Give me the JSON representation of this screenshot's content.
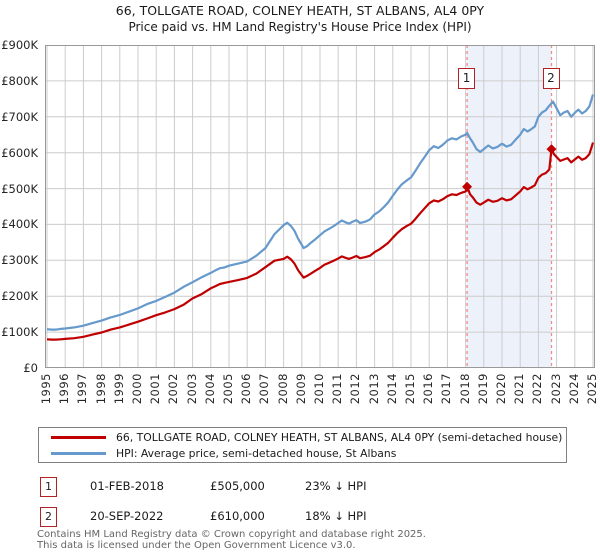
{
  "title": "66, TOLLGATE ROAD, COLNEY HEATH, ST ALBANS, AL4 0PY",
  "subtitle": "Price paid vs. HM Land Registry's House Price Index (HPI)",
  "colors": {
    "price_paid_line": "#c00000",
    "hpi_line": "#6699cc",
    "marker_dashed_line": "#f28b8b",
    "shaded_region": "#edf1fa",
    "gridline": "#cccccc",
    "plot_border": "#999999",
    "annotation_border": "#b22222",
    "footer_text": "#666666"
  },
  "chart_data": {
    "type": "line",
    "title": "66, TOLLGATE ROAD, COLNEY HEATH, ST ALBANS, AL4 0PY",
    "subtitle": "Price paid vs. HM Land Registry's House Price Index (HPI)",
    "x_axis": {
      "tick_labels": [
        "1995",
        "1996",
        "1997",
        "1998",
        "1999",
        "2000",
        "2001",
        "2002",
        "2003",
        "2004",
        "2005",
        "2006",
        "2007",
        "2008",
        "2009",
        "2010",
        "2011",
        "2012",
        "2013",
        "2014",
        "2015",
        "2016",
        "2017",
        "2018",
        "2019",
        "2020",
        "2021",
        "2022",
        "2023",
        "2024",
        "2025"
      ],
      "min": 1995,
      "max": 2025.1
    },
    "y_axis": {
      "tick_labels": [
        "£900K",
        "£800K",
        "£700K",
        "£600K",
        "£500K",
        "£400K",
        "£300K",
        "£200K",
        "£100K",
        "£0"
      ],
      "tick_values_k": [
        900,
        800,
        700,
        600,
        500,
        400,
        300,
        200,
        100,
        0
      ],
      "min_k": 0,
      "max_k": 900,
      "unit": "GBP thousands"
    },
    "grid": true,
    "legend_position": "bottom",
    "shaded_region": {
      "from_year": 2018.08,
      "to_year": 2022.72
    },
    "markers": [
      {
        "label": "1",
        "year": 2018.08,
        "value_k": 505
      },
      {
        "label": "2",
        "year": 2022.72,
        "value_k": 610
      }
    ],
    "series": [
      {
        "name": "66, TOLLGATE ROAD, COLNEY HEATH, ST ALBANS, AL4 0PY (semi-detached house)",
        "color": "#c00000",
        "points": [
          [
            1995.0,
            80
          ],
          [
            1995.25,
            79
          ],
          [
            1995.5,
            79
          ],
          [
            1995.75,
            80
          ],
          [
            1996.0,
            81
          ],
          [
            1996.5,
            83
          ],
          [
            1997.0,
            87
          ],
          [
            1997.5,
            93
          ],
          [
            1998.0,
            99
          ],
          [
            1998.5,
            107
          ],
          [
            1999.0,
            113
          ],
          [
            1999.5,
            121
          ],
          [
            2000.0,
            129
          ],
          [
            2000.5,
            138
          ],
          [
            2001.0,
            147
          ],
          [
            2001.5,
            155
          ],
          [
            2002.0,
            164
          ],
          [
            2002.5,
            176
          ],
          [
            2003.0,
            194
          ],
          [
            2003.5,
            206
          ],
          [
            2004.0,
            222
          ],
          [
            2004.25,
            228
          ],
          [
            2004.5,
            234
          ],
          [
            2004.75,
            237
          ],
          [
            2005.0,
            240
          ],
          [
            2005.5,
            245
          ],
          [
            2006.0,
            251
          ],
          [
            2006.5,
            263
          ],
          [
            2007.0,
            281
          ],
          [
            2007.5,
            299
          ],
          [
            2008.0,
            304
          ],
          [
            2008.2,
            310
          ],
          [
            2008.4,
            303
          ],
          [
            2008.6,
            291
          ],
          [
            2008.8,
            272
          ],
          [
            2009.1,
            252
          ],
          [
            2009.3,
            257
          ],
          [
            2009.5,
            263
          ],
          [
            2009.75,
            271
          ],
          [
            2010.0,
            279
          ],
          [
            2010.25,
            288
          ],
          [
            2010.5,
            293
          ],
          [
            2010.75,
            299
          ],
          [
            2011.0,
            305
          ],
          [
            2011.2,
            311
          ],
          [
            2011.4,
            307
          ],
          [
            2011.6,
            304
          ],
          [
            2011.8,
            308
          ],
          [
            2012.0,
            312
          ],
          [
            2012.2,
            306
          ],
          [
            2012.5,
            309
          ],
          [
            2012.75,
            313
          ],
          [
            2013.0,
            323
          ],
          [
            2013.25,
            330
          ],
          [
            2013.5,
            339
          ],
          [
            2013.75,
            349
          ],
          [
            2014.0,
            363
          ],
          [
            2014.25,
            376
          ],
          [
            2014.5,
            387
          ],
          [
            2014.75,
            395
          ],
          [
            2015.0,
            402
          ],
          [
            2015.25,
            416
          ],
          [
            2015.5,
            431
          ],
          [
            2015.75,
            445
          ],
          [
            2016.0,
            459
          ],
          [
            2016.25,
            467
          ],
          [
            2016.5,
            464
          ],
          [
            2016.75,
            470
          ],
          [
            2017.0,
            479
          ],
          [
            2017.25,
            484
          ],
          [
            2017.5,
            482
          ],
          [
            2017.75,
            488
          ],
          [
            2018.0,
            492
          ],
          [
            2018.08,
            505
          ],
          [
            2018.25,
            484
          ],
          [
            2018.4,
            475
          ],
          [
            2018.6,
            461
          ],
          [
            2018.8,
            455
          ],
          [
            2019.0,
            461
          ],
          [
            2019.25,
            469
          ],
          [
            2019.5,
            463
          ],
          [
            2019.75,
            466
          ],
          [
            2020.0,
            473
          ],
          [
            2020.25,
            467
          ],
          [
            2020.5,
            470
          ],
          [
            2020.75,
            481
          ],
          [
            2021.0,
            492
          ],
          [
            2021.2,
            504
          ],
          [
            2021.4,
            498
          ],
          [
            2021.6,
            503
          ],
          [
            2021.8,
            509
          ],
          [
            2022.0,
            530
          ],
          [
            2022.2,
            539
          ],
          [
            2022.4,
            543
          ],
          [
            2022.6,
            553
          ],
          [
            2022.72,
            610
          ],
          [
            2022.85,
            596
          ],
          [
            2023.0,
            588
          ],
          [
            2023.2,
            577
          ],
          [
            2023.4,
            581
          ],
          [
            2023.6,
            585
          ],
          [
            2023.8,
            573
          ],
          [
            2024.0,
            581
          ],
          [
            2024.2,
            589
          ],
          [
            2024.4,
            580
          ],
          [
            2024.6,
            585
          ],
          [
            2024.8,
            596
          ],
          [
            2025.0,
            628
          ]
        ]
      },
      {
        "name": "HPI: Average price, semi-detached house, St Albans",
        "color": "#6699cc",
        "points": [
          [
            1995.0,
            108
          ],
          [
            1995.25,
            107
          ],
          [
            1995.5,
            107
          ],
          [
            1995.75,
            109
          ],
          [
            1996.0,
            110
          ],
          [
            1996.5,
            113
          ],
          [
            1997.0,
            118
          ],
          [
            1997.5,
            125
          ],
          [
            1998.0,
            132
          ],
          [
            1998.5,
            141
          ],
          [
            1999.0,
            148
          ],
          [
            1999.5,
            157
          ],
          [
            2000.0,
            166
          ],
          [
            2000.5,
            178
          ],
          [
            2001.0,
            187
          ],
          [
            2001.5,
            198
          ],
          [
            2002.0,
            210
          ],
          [
            2002.5,
            226
          ],
          [
            2003.0,
            239
          ],
          [
            2003.5,
            253
          ],
          [
            2004.0,
            265
          ],
          [
            2004.25,
            272
          ],
          [
            2004.5,
            278
          ],
          [
            2004.75,
            280
          ],
          [
            2005.0,
            285
          ],
          [
            2005.5,
            291
          ],
          [
            2006.0,
            297
          ],
          [
            2006.5,
            313
          ],
          [
            2007.0,
            334
          ],
          [
            2007.5,
            373
          ],
          [
            2008.0,
            398
          ],
          [
            2008.2,
            405
          ],
          [
            2008.4,
            396
          ],
          [
            2008.6,
            382
          ],
          [
            2008.8,
            360
          ],
          [
            2009.1,
            334
          ],
          [
            2009.3,
            340
          ],
          [
            2009.5,
            349
          ],
          [
            2009.75,
            359
          ],
          [
            2010.0,
            370
          ],
          [
            2010.25,
            381
          ],
          [
            2010.5,
            388
          ],
          [
            2010.75,
            395
          ],
          [
            2011.0,
            404
          ],
          [
            2011.2,
            411
          ],
          [
            2011.4,
            406
          ],
          [
            2011.6,
            402
          ],
          [
            2011.8,
            408
          ],
          [
            2012.0,
            412
          ],
          [
            2012.2,
            404
          ],
          [
            2012.5,
            408
          ],
          [
            2012.75,
            414
          ],
          [
            2013.0,
            428
          ],
          [
            2013.25,
            436
          ],
          [
            2013.5,
            448
          ],
          [
            2013.75,
            462
          ],
          [
            2014.0,
            480
          ],
          [
            2014.25,
            497
          ],
          [
            2014.5,
            512
          ],
          [
            2014.75,
            522
          ],
          [
            2015.0,
            531
          ],
          [
            2015.25,
            550
          ],
          [
            2015.5,
            570
          ],
          [
            2015.75,
            588
          ],
          [
            2016.0,
            607
          ],
          [
            2016.25,
            618
          ],
          [
            2016.5,
            613
          ],
          [
            2016.75,
            622
          ],
          [
            2017.0,
            634
          ],
          [
            2017.25,
            640
          ],
          [
            2017.5,
            637
          ],
          [
            2017.75,
            645
          ],
          [
            2018.0,
            650
          ],
          [
            2018.08,
            655
          ],
          [
            2018.25,
            640
          ],
          [
            2018.4,
            628
          ],
          [
            2018.6,
            610
          ],
          [
            2018.8,
            602
          ],
          [
            2019.0,
            610
          ],
          [
            2019.25,
            620
          ],
          [
            2019.5,
            612
          ],
          [
            2019.75,
            616
          ],
          [
            2020.0,
            625
          ],
          [
            2020.25,
            617
          ],
          [
            2020.5,
            622
          ],
          [
            2020.75,
            636
          ],
          [
            2021.0,
            650
          ],
          [
            2021.2,
            666
          ],
          [
            2021.4,
            659
          ],
          [
            2021.6,
            665
          ],
          [
            2021.8,
            673
          ],
          [
            2022.0,
            700
          ],
          [
            2022.2,
            712
          ],
          [
            2022.4,
            718
          ],
          [
            2022.6,
            731
          ],
          [
            2022.8,
            742
          ],
          [
            2023.0,
            724
          ],
          [
            2023.2,
            704
          ],
          [
            2023.4,
            712
          ],
          [
            2023.6,
            716
          ],
          [
            2023.8,
            700
          ],
          [
            2024.0,
            711
          ],
          [
            2024.2,
            720
          ],
          [
            2024.4,
            709
          ],
          [
            2024.6,
            716
          ],
          [
            2024.8,
            729
          ],
          [
            2025.0,
            762
          ]
        ]
      }
    ]
  },
  "legend": {
    "items": [
      {
        "label": "66, TOLLGATE ROAD, COLNEY HEATH, ST ALBANS, AL4 0PY (semi-detached house)",
        "color": "#c00000"
      },
      {
        "label": "HPI: Average price, semi-detached house, St Albans",
        "color": "#6699cc"
      }
    ]
  },
  "transactions": [
    {
      "num": "1",
      "date": "01-FEB-2018",
      "price": "£505,000",
      "hpi": "23% ↓ HPI"
    },
    {
      "num": "2",
      "date": "20-SEP-2022",
      "price": "£610,000",
      "hpi": "18% ↓ HPI"
    }
  ],
  "footer": {
    "line1": "Contains HM Land Registry data © Crown copyright and database right 2025.",
    "line2": "This data is licensed under the Open Government Licence v3.0."
  }
}
